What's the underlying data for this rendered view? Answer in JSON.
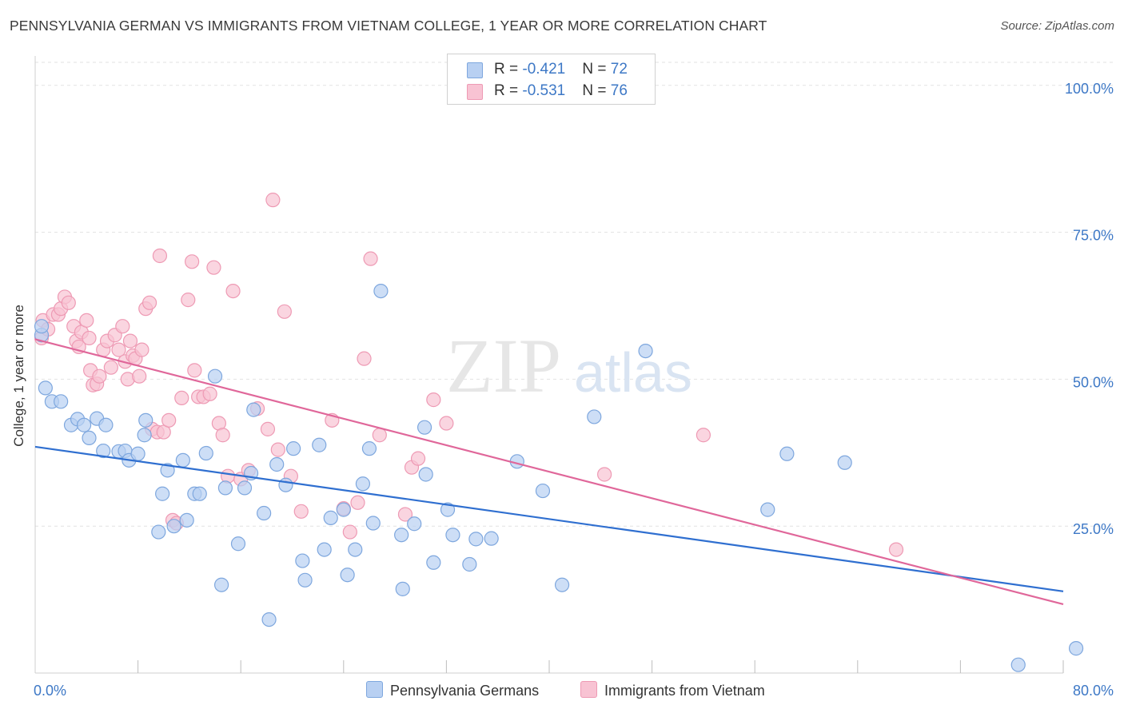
{
  "header": {
    "title": "PENNSYLVANIA GERMAN VS IMMIGRANTS FROM VIETNAM COLLEGE, 1 YEAR OR MORE CORRELATION CHART",
    "source": "Source: ZipAtlas.com"
  },
  "watermark": {
    "zip": "ZIP",
    "atlas": "atlas"
  },
  "legend": {
    "rows": [
      {
        "r_label": "R = ",
        "r_value": "-0.421",
        "n_label": "N = ",
        "n_value": "72"
      },
      {
        "r_label": "R = ",
        "r_value": "-0.531",
        "n_label": "N = ",
        "n_value": "76"
      }
    ]
  },
  "colors": {
    "blue_fill": "#b8d0f2",
    "blue_stroke": "#7ea7de",
    "blue_line": "#2f6fd0",
    "pink_fill": "#f8c3d3",
    "pink_stroke": "#ee9ab4",
    "pink_line": "#e0679a",
    "tick_label": "#3d78c6",
    "grid": "#e2e2e2"
  },
  "chart_data": {
    "type": "scatter",
    "xlabel": "",
    "ylabel": "College, 1 year or more",
    "xlim": [
      0,
      80
    ],
    "ylim": [
      0,
      105
    ],
    "x_tick_labels": [
      {
        "value": 0,
        "label": "0.0%"
      },
      {
        "value": 80,
        "label": "80.0%"
      }
    ],
    "x_minor_ticks": [
      8,
      16,
      24,
      32,
      40,
      48,
      56,
      64,
      72,
      80
    ],
    "y_ticks": [
      {
        "value": 25,
        "label": "25.0%"
      },
      {
        "value": 50,
        "label": "50.0%"
      },
      {
        "value": 75,
        "label": "75.0%"
      },
      {
        "value": 100,
        "label": "100.0%"
      }
    ],
    "grid": true,
    "legend_position": "top-center",
    "series": [
      {
        "name": "Pennsylvania Germans",
        "color": "#b8d0f2",
        "trend": {
          "x": [
            0,
            80
          ],
          "y": [
            38.5,
            13.9
          ]
        },
        "points": [
          [
            0.3,
            57.5
          ],
          [
            0.5,
            59.0
          ],
          [
            0.8,
            48.5
          ],
          [
            1.3,
            46.2
          ],
          [
            2.0,
            46.2
          ],
          [
            2.8,
            42.2
          ],
          [
            3.3,
            43.2
          ],
          [
            3.8,
            42.2
          ],
          [
            4.2,
            40.0
          ],
          [
            4.8,
            43.3
          ],
          [
            5.5,
            42.2
          ],
          [
            5.3,
            37.8
          ],
          [
            6.5,
            37.7
          ],
          [
            7.0,
            37.8
          ],
          [
            7.3,
            36.2
          ],
          [
            8.0,
            37.3
          ],
          [
            8.5,
            40.5
          ],
          [
            8.6,
            43.0
          ],
          [
            9.6,
            24.0
          ],
          [
            9.9,
            30.5
          ],
          [
            10.3,
            34.5
          ],
          [
            10.8,
            25.0
          ],
          [
            11.5,
            36.2
          ],
          [
            11.8,
            26.0
          ],
          [
            12.4,
            30.5
          ],
          [
            12.8,
            30.5
          ],
          [
            13.3,
            37.4
          ],
          [
            14.0,
            50.5
          ],
          [
            14.5,
            15.0
          ],
          [
            14.8,
            31.5
          ],
          [
            15.8,
            22.0
          ],
          [
            16.3,
            31.5
          ],
          [
            16.8,
            34.0
          ],
          [
            17.0,
            44.8
          ],
          [
            17.8,
            27.2
          ],
          [
            18.2,
            9.1
          ],
          [
            18.8,
            35.5
          ],
          [
            19.5,
            32.0
          ],
          [
            20.1,
            38.2
          ],
          [
            20.8,
            19.1
          ],
          [
            21.0,
            15.8
          ],
          [
            22.1,
            38.8
          ],
          [
            22.5,
            21.0
          ],
          [
            23.0,
            26.4
          ],
          [
            24.0,
            27.8
          ],
          [
            24.3,
            16.7
          ],
          [
            24.9,
            21.0
          ],
          [
            25.5,
            32.2
          ],
          [
            26.0,
            38.2
          ],
          [
            26.3,
            25.5
          ],
          [
            26.9,
            65.0
          ],
          [
            28.5,
            23.5
          ],
          [
            28.6,
            14.3
          ],
          [
            29.5,
            25.4
          ],
          [
            30.3,
            41.8
          ],
          [
            30.4,
            33.8
          ],
          [
            31.0,
            18.8
          ],
          [
            32.1,
            27.8
          ],
          [
            32.5,
            23.5
          ],
          [
            33.8,
            18.5
          ],
          [
            34.3,
            22.8
          ],
          [
            35.5,
            22.9
          ],
          [
            37.5,
            36.0
          ],
          [
            39.5,
            31.0
          ],
          [
            41.0,
            15.0
          ],
          [
            43.5,
            43.6
          ],
          [
            47.5,
            54.8
          ],
          [
            57.0,
            27.8
          ],
          [
            58.5,
            37.3
          ],
          [
            63.0,
            35.8
          ],
          [
            76.5,
            1.4
          ],
          [
            81.0,
            4.2
          ]
        ]
      },
      {
        "name": "Immigrants from Vietnam",
        "color": "#f8c3d3",
        "trend": {
          "x": [
            0,
            80
          ],
          "y": [
            56.8,
            11.7
          ]
        },
        "points": [
          [
            0.4,
            57.0
          ],
          [
            0.6,
            60.0
          ],
          [
            1.0,
            58.5
          ],
          [
            1.4,
            61.0
          ],
          [
            1.8,
            61.0
          ],
          [
            2.0,
            62.0
          ],
          [
            2.3,
            64.0
          ],
          [
            2.6,
            63.0
          ],
          [
            3.0,
            59.0
          ],
          [
            3.2,
            56.5
          ],
          [
            3.4,
            55.5
          ],
          [
            3.6,
            58.0
          ],
          [
            4.0,
            60.0
          ],
          [
            4.2,
            57.0
          ],
          [
            4.3,
            51.5
          ],
          [
            4.5,
            49.0
          ],
          [
            4.8,
            49.2
          ],
          [
            5.0,
            50.5
          ],
          [
            5.3,
            55.0
          ],
          [
            5.6,
            56.5
          ],
          [
            5.9,
            52.0
          ],
          [
            6.2,
            57.5
          ],
          [
            6.5,
            55.0
          ],
          [
            6.8,
            59.0
          ],
          [
            7.0,
            53.0
          ],
          [
            7.2,
            50.0
          ],
          [
            7.4,
            56.5
          ],
          [
            7.6,
            54.0
          ],
          [
            7.8,
            53.5
          ],
          [
            8.1,
            50.5
          ],
          [
            8.3,
            55.0
          ],
          [
            8.6,
            62.0
          ],
          [
            8.9,
            63.0
          ],
          [
            9.1,
            41.5
          ],
          [
            9.5,
            41.0
          ],
          [
            9.7,
            71.0
          ],
          [
            10.0,
            41.0
          ],
          [
            10.4,
            43.0
          ],
          [
            10.7,
            26.0
          ],
          [
            11.0,
            25.5
          ],
          [
            11.4,
            46.8
          ],
          [
            11.9,
            63.5
          ],
          [
            12.2,
            70.0
          ],
          [
            12.4,
            51.5
          ],
          [
            12.7,
            47.0
          ],
          [
            13.1,
            47.0
          ],
          [
            13.6,
            47.5
          ],
          [
            13.9,
            69.0
          ],
          [
            14.3,
            42.5
          ],
          [
            14.6,
            40.5
          ],
          [
            15.0,
            33.5
          ],
          [
            15.4,
            65.0
          ],
          [
            16.0,
            33.0
          ],
          [
            16.6,
            34.5
          ],
          [
            17.3,
            45.0
          ],
          [
            18.1,
            41.5
          ],
          [
            18.5,
            80.5
          ],
          [
            18.9,
            38.0
          ],
          [
            19.4,
            61.5
          ],
          [
            19.9,
            33.5
          ],
          [
            20.7,
            27.5
          ],
          [
            23.1,
            43.0
          ],
          [
            24.0,
            28.0
          ],
          [
            24.5,
            24.0
          ],
          [
            25.1,
            29.0
          ],
          [
            25.6,
            53.5
          ],
          [
            26.1,
            70.5
          ],
          [
            26.8,
            40.5
          ],
          [
            28.8,
            27.0
          ],
          [
            29.3,
            35.0
          ],
          [
            29.8,
            36.5
          ],
          [
            31.0,
            46.5
          ],
          [
            32.0,
            42.5
          ],
          [
            44.3,
            33.8
          ],
          [
            52.0,
            40.5
          ],
          [
            67.0,
            21.0
          ]
        ]
      }
    ]
  }
}
